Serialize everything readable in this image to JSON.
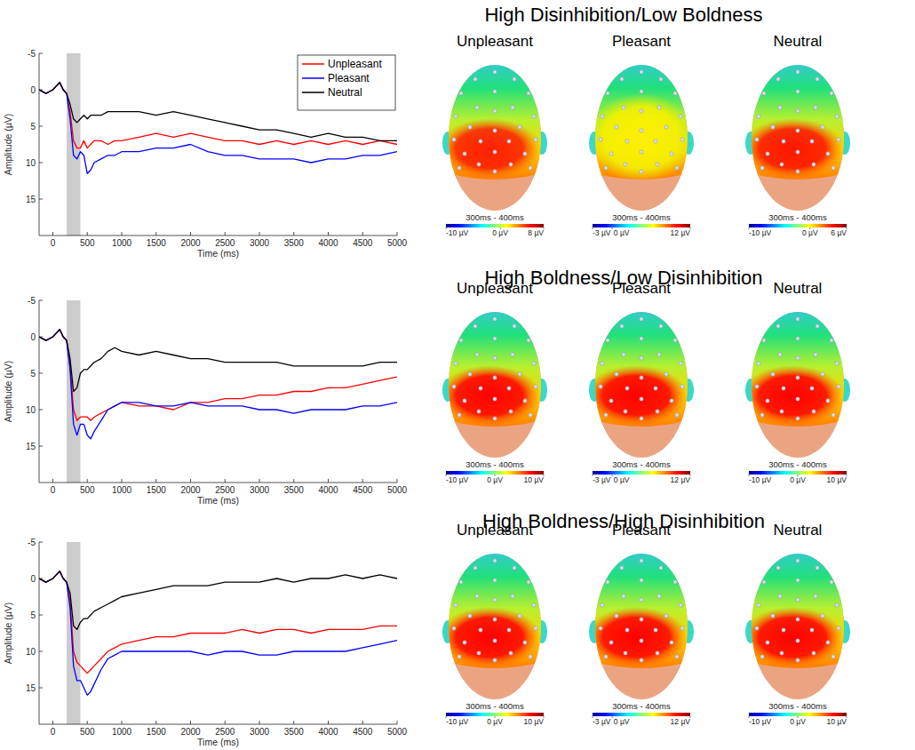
{
  "chart_data": [
    {
      "type": "line",
      "title": "High Disinhibition/Low Boldness",
      "x_label": "Time (ms)",
      "y_label": "Amplitude (µV)",
      "x": [
        -200,
        -100,
        0,
        50,
        100,
        150,
        200,
        250,
        300,
        350,
        400,
        450,
        500,
        550,
        600,
        700,
        800,
        900,
        1000,
        1250,
        1500,
        1750,
        2000,
        2250,
        2500,
        2750,
        3000,
        3250,
        3500,
        3750,
        4000,
        4250,
        4500,
        4750,
        5000
      ],
      "xlim": [
        -200,
        5000
      ],
      "xticks": [
        0,
        500,
        1000,
        1500,
        2000,
        2500,
        3000,
        3500,
        4000,
        4500,
        5000
      ],
      "ylim": [
        20,
        -5
      ],
      "yticks": [
        -5,
        0,
        5,
        10,
        15
      ],
      "highlight": [
        200,
        400
      ],
      "legend": "upper right",
      "series": [
        {
          "name": "Unpleasant",
          "color": "#ff0000",
          "values": [
            0,
            0.5,
            0,
            -0.5,
            -1,
            0,
            0.5,
            3,
            7,
            8,
            8,
            7,
            8,
            7.5,
            7,
            7,
            7.5,
            7,
            7,
            6.5,
            6,
            6.5,
            6,
            6.5,
            7,
            7,
            7.5,
            7,
            7.5,
            7,
            7.5,
            7,
            7.5,
            7,
            7.5
          ]
        },
        {
          "name": "Pleasant",
          "color": "#0000ff",
          "values": [
            0,
            0.5,
            0,
            -0.5,
            -1,
            0,
            0.5,
            4,
            9,
            9.5,
            8.5,
            9,
            11.5,
            11,
            10,
            9.5,
            9,
            9,
            8.5,
            8.5,
            8,
            8,
            7.5,
            8.5,
            9,
            9,
            9.5,
            9.5,
            9.5,
            10,
            9.5,
            9.5,
            9,
            9,
            8.5
          ]
        },
        {
          "name": "Neutral",
          "color": "#000000",
          "values": [
            0,
            0.5,
            0,
            -0.5,
            -1,
            0,
            0.5,
            2,
            4,
            4.5,
            4,
            3.5,
            4,
            3.5,
            3.5,
            3.5,
            3,
            3,
            3,
            3,
            3.5,
            3,
            3.5,
            4,
            4.5,
            5,
            5.5,
            5.5,
            6,
            6.5,
            6,
            6.5,
            6.5,
            7,
            7
          ]
        }
      ]
    },
    {
      "type": "topomap",
      "title": "Unpleasant",
      "subtitle": "300ms - 400ms",
      "colorbar_range": [
        -10,
        8
      ],
      "colorbar_ticks": [
        {
          "value": -10,
          "label": "-10 µV"
        },
        {
          "value": 0,
          "label": "0 µV"
        },
        {
          "value": 8,
          "label": "8 µV"
        }
      ]
    },
    {
      "type": "topomap",
      "title": "Pleasant",
      "subtitle": "300ms - 400ms",
      "colorbar_range": [
        -3,
        12
      ],
      "colorbar_ticks": [
        {
          "value": -3,
          "label": "-3 µV"
        },
        {
          "value": 0,
          "label": "0 µV"
        },
        {
          "value": 12,
          "label": "12 µV"
        }
      ]
    },
    {
      "type": "topomap",
      "title": "Neutral",
      "subtitle": "300ms - 400ms",
      "colorbar_range": [
        -10,
        6
      ],
      "colorbar_ticks": [
        {
          "value": -10,
          "label": "-10 µV"
        },
        {
          "value": 0,
          "label": "0 µV"
        },
        {
          "value": 6,
          "label": "6 µV"
        }
      ]
    },
    {
      "type": "line",
      "title": "High Boldness/Low Disinhibition",
      "x_label": "Time (ms)",
      "y_label": "Amplitude (µV)",
      "x": [
        -200,
        -100,
        0,
        50,
        100,
        150,
        200,
        250,
        300,
        350,
        400,
        450,
        500,
        550,
        600,
        700,
        800,
        900,
        1000,
        1250,
        1500,
        1750,
        2000,
        2250,
        2500,
        2750,
        3000,
        3250,
        3500,
        3750,
        4000,
        4250,
        4500,
        4750,
        5000
      ],
      "xlim": [
        -200,
        5000
      ],
      "xticks": [
        0,
        500,
        1000,
        1500,
        2000,
        2500,
        3000,
        3500,
        4000,
        4500,
        5000
      ],
      "ylim": [
        20,
        -5
      ],
      "yticks": [
        -5,
        0,
        5,
        10,
        15
      ],
      "highlight": [
        200,
        400
      ],
      "series": [
        {
          "name": "Unpleasant",
          "color": "#ff0000",
          "values": [
            0,
            0.5,
            0,
            -0.5,
            -1,
            0,
            0.5,
            4,
            10,
            11.5,
            11,
            11,
            11,
            11.5,
            11,
            10.5,
            10,
            9.5,
            9,
            9.5,
            9.5,
            10,
            9,
            9,
            8.5,
            8.5,
            8,
            8,
            7.5,
            7.5,
            7,
            7,
            6.5,
            6,
            5.5
          ]
        },
        {
          "name": "Pleasant",
          "color": "#0000ff",
          "values": [
            0,
            0.5,
            0,
            -0.5,
            -1,
            0,
            0.5,
            4.5,
            12,
            13.5,
            12,
            12,
            13.5,
            14,
            13,
            11.5,
            10,
            9.5,
            9,
            9,
            9.5,
            9.5,
            9,
            9.5,
            9.5,
            9.5,
            10,
            10,
            10.5,
            10,
            10,
            10,
            9.5,
            9.5,
            9
          ]
        },
        {
          "name": "Neutral",
          "color": "#000000",
          "values": [
            0,
            0.5,
            0,
            -0.5,
            -1,
            0,
            0.5,
            3,
            7.5,
            7,
            5,
            4.5,
            4.5,
            4,
            3.5,
            3,
            2,
            1.5,
            2,
            2.5,
            2,
            2.5,
            3,
            3,
            3.5,
            3.5,
            3.5,
            3.5,
            4,
            4,
            4,
            4,
            4,
            3.5,
            3.5
          ]
        }
      ]
    },
    {
      "type": "topomap",
      "title": "Unpleasant",
      "subtitle": "300ms - 400ms",
      "colorbar_range": [
        -10,
        10
      ],
      "colorbar_ticks": [
        {
          "value": -10,
          "label": "-10 µV"
        },
        {
          "value": 0,
          "label": "0 µV"
        },
        {
          "value": 10,
          "label": "10 µV"
        }
      ]
    },
    {
      "type": "topomap",
      "title": "Pleasant",
      "subtitle": "300ms - 400ms",
      "colorbar_range": [
        -3,
        12
      ],
      "colorbar_ticks": [
        {
          "value": -3,
          "label": "-3 µV"
        },
        {
          "value": 0,
          "label": "0 µV"
        },
        {
          "value": 12,
          "label": "12 µV"
        }
      ]
    },
    {
      "type": "topomap",
      "title": "Neutral",
      "subtitle": "300ms - 400ms",
      "colorbar_range": [
        -10,
        10
      ],
      "colorbar_ticks": [
        {
          "value": -10,
          "label": "-10 µV"
        },
        {
          "value": 0,
          "label": "0 µV"
        },
        {
          "value": 10,
          "label": "10 µV"
        }
      ]
    },
    {
      "type": "line",
      "title": "High Boldness/High Disinhibition",
      "x_label": "Time (ms)",
      "y_label": "Amplitude (µV)",
      "x": [
        -200,
        -100,
        0,
        50,
        100,
        150,
        200,
        250,
        300,
        350,
        400,
        450,
        500,
        550,
        600,
        700,
        800,
        900,
        1000,
        1250,
        1500,
        1750,
        2000,
        2250,
        2500,
        2750,
        3000,
        3250,
        3500,
        3750,
        4000,
        4250,
        4500,
        4750,
        5000
      ],
      "xlim": [
        -200,
        5000
      ],
      "xticks": [
        0,
        500,
        1000,
        1500,
        2000,
        2500,
        3000,
        3500,
        4000,
        4500,
        5000
      ],
      "ylim": [
        20,
        -5
      ],
      "yticks": [
        -5,
        0,
        5,
        10,
        15
      ],
      "highlight": [
        200,
        400
      ],
      "series": [
        {
          "name": "Unpleasant",
          "color": "#ff0000",
          "values": [
            0,
            0.5,
            0,
            -0.5,
            -1,
            0,
            0.5,
            3,
            10,
            11.5,
            12,
            12.5,
            13,
            12.5,
            12,
            11,
            10,
            9.5,
            9,
            8.5,
            8,
            8,
            7.5,
            7.5,
            7.5,
            7,
            7.5,
            7,
            7,
            7.5,
            7,
            7,
            7,
            6.5,
            6.5
          ]
        },
        {
          "name": "Pleasant",
          "color": "#0000ff",
          "values": [
            0,
            0.5,
            0,
            -0.5,
            -1,
            0,
            0.5,
            4,
            12,
            14,
            14,
            15,
            16,
            15.5,
            14.5,
            12.5,
            11,
            10.5,
            10,
            10,
            10,
            10,
            10,
            10.5,
            10,
            10,
            10.5,
            10.5,
            10,
            10,
            10,
            10,
            9.5,
            9,
            8.5
          ]
        },
        {
          "name": "Neutral",
          "color": "#000000",
          "values": [
            0,
            0.5,
            0,
            -0.5,
            -1,
            0,
            0.5,
            2,
            6.5,
            7,
            6,
            5.5,
            5.5,
            5,
            4.5,
            4,
            3.5,
            3,
            2.5,
            2,
            1.5,
            1,
            1,
            1,
            0.5,
            0.5,
            0.5,
            0,
            0.5,
            0,
            0,
            -0.5,
            0,
            -0.5,
            0
          ]
        }
      ]
    },
    {
      "type": "topomap",
      "title": "Unpleasant",
      "subtitle": "300ms - 400ms",
      "colorbar_range": [
        -10,
        10
      ],
      "colorbar_ticks": [
        {
          "value": -10,
          "label": "-10 µV"
        },
        {
          "value": 0,
          "label": "0 µV"
        },
        {
          "value": 10,
          "label": "10 µV"
        }
      ]
    },
    {
      "type": "topomap",
      "title": "Pleasant",
      "subtitle": "300ms - 400ms",
      "colorbar_range": [
        -3,
        12
      ],
      "colorbar_ticks": [
        {
          "value": -3,
          "label": "-3 µV"
        },
        {
          "value": 0,
          "label": "0 µV"
        },
        {
          "value": 12,
          "label": "12 µV"
        }
      ]
    },
    {
      "type": "topomap",
      "title": "Neutral",
      "subtitle": "300ms - 400ms",
      "colorbar_range": [
        -10,
        10
      ],
      "colorbar_ticks": [
        {
          "value": -10,
          "label": "-10 µV"
        },
        {
          "value": 0,
          "label": "0 µV"
        },
        {
          "value": 10,
          "label": "10 µV"
        }
      ]
    }
  ]
}
